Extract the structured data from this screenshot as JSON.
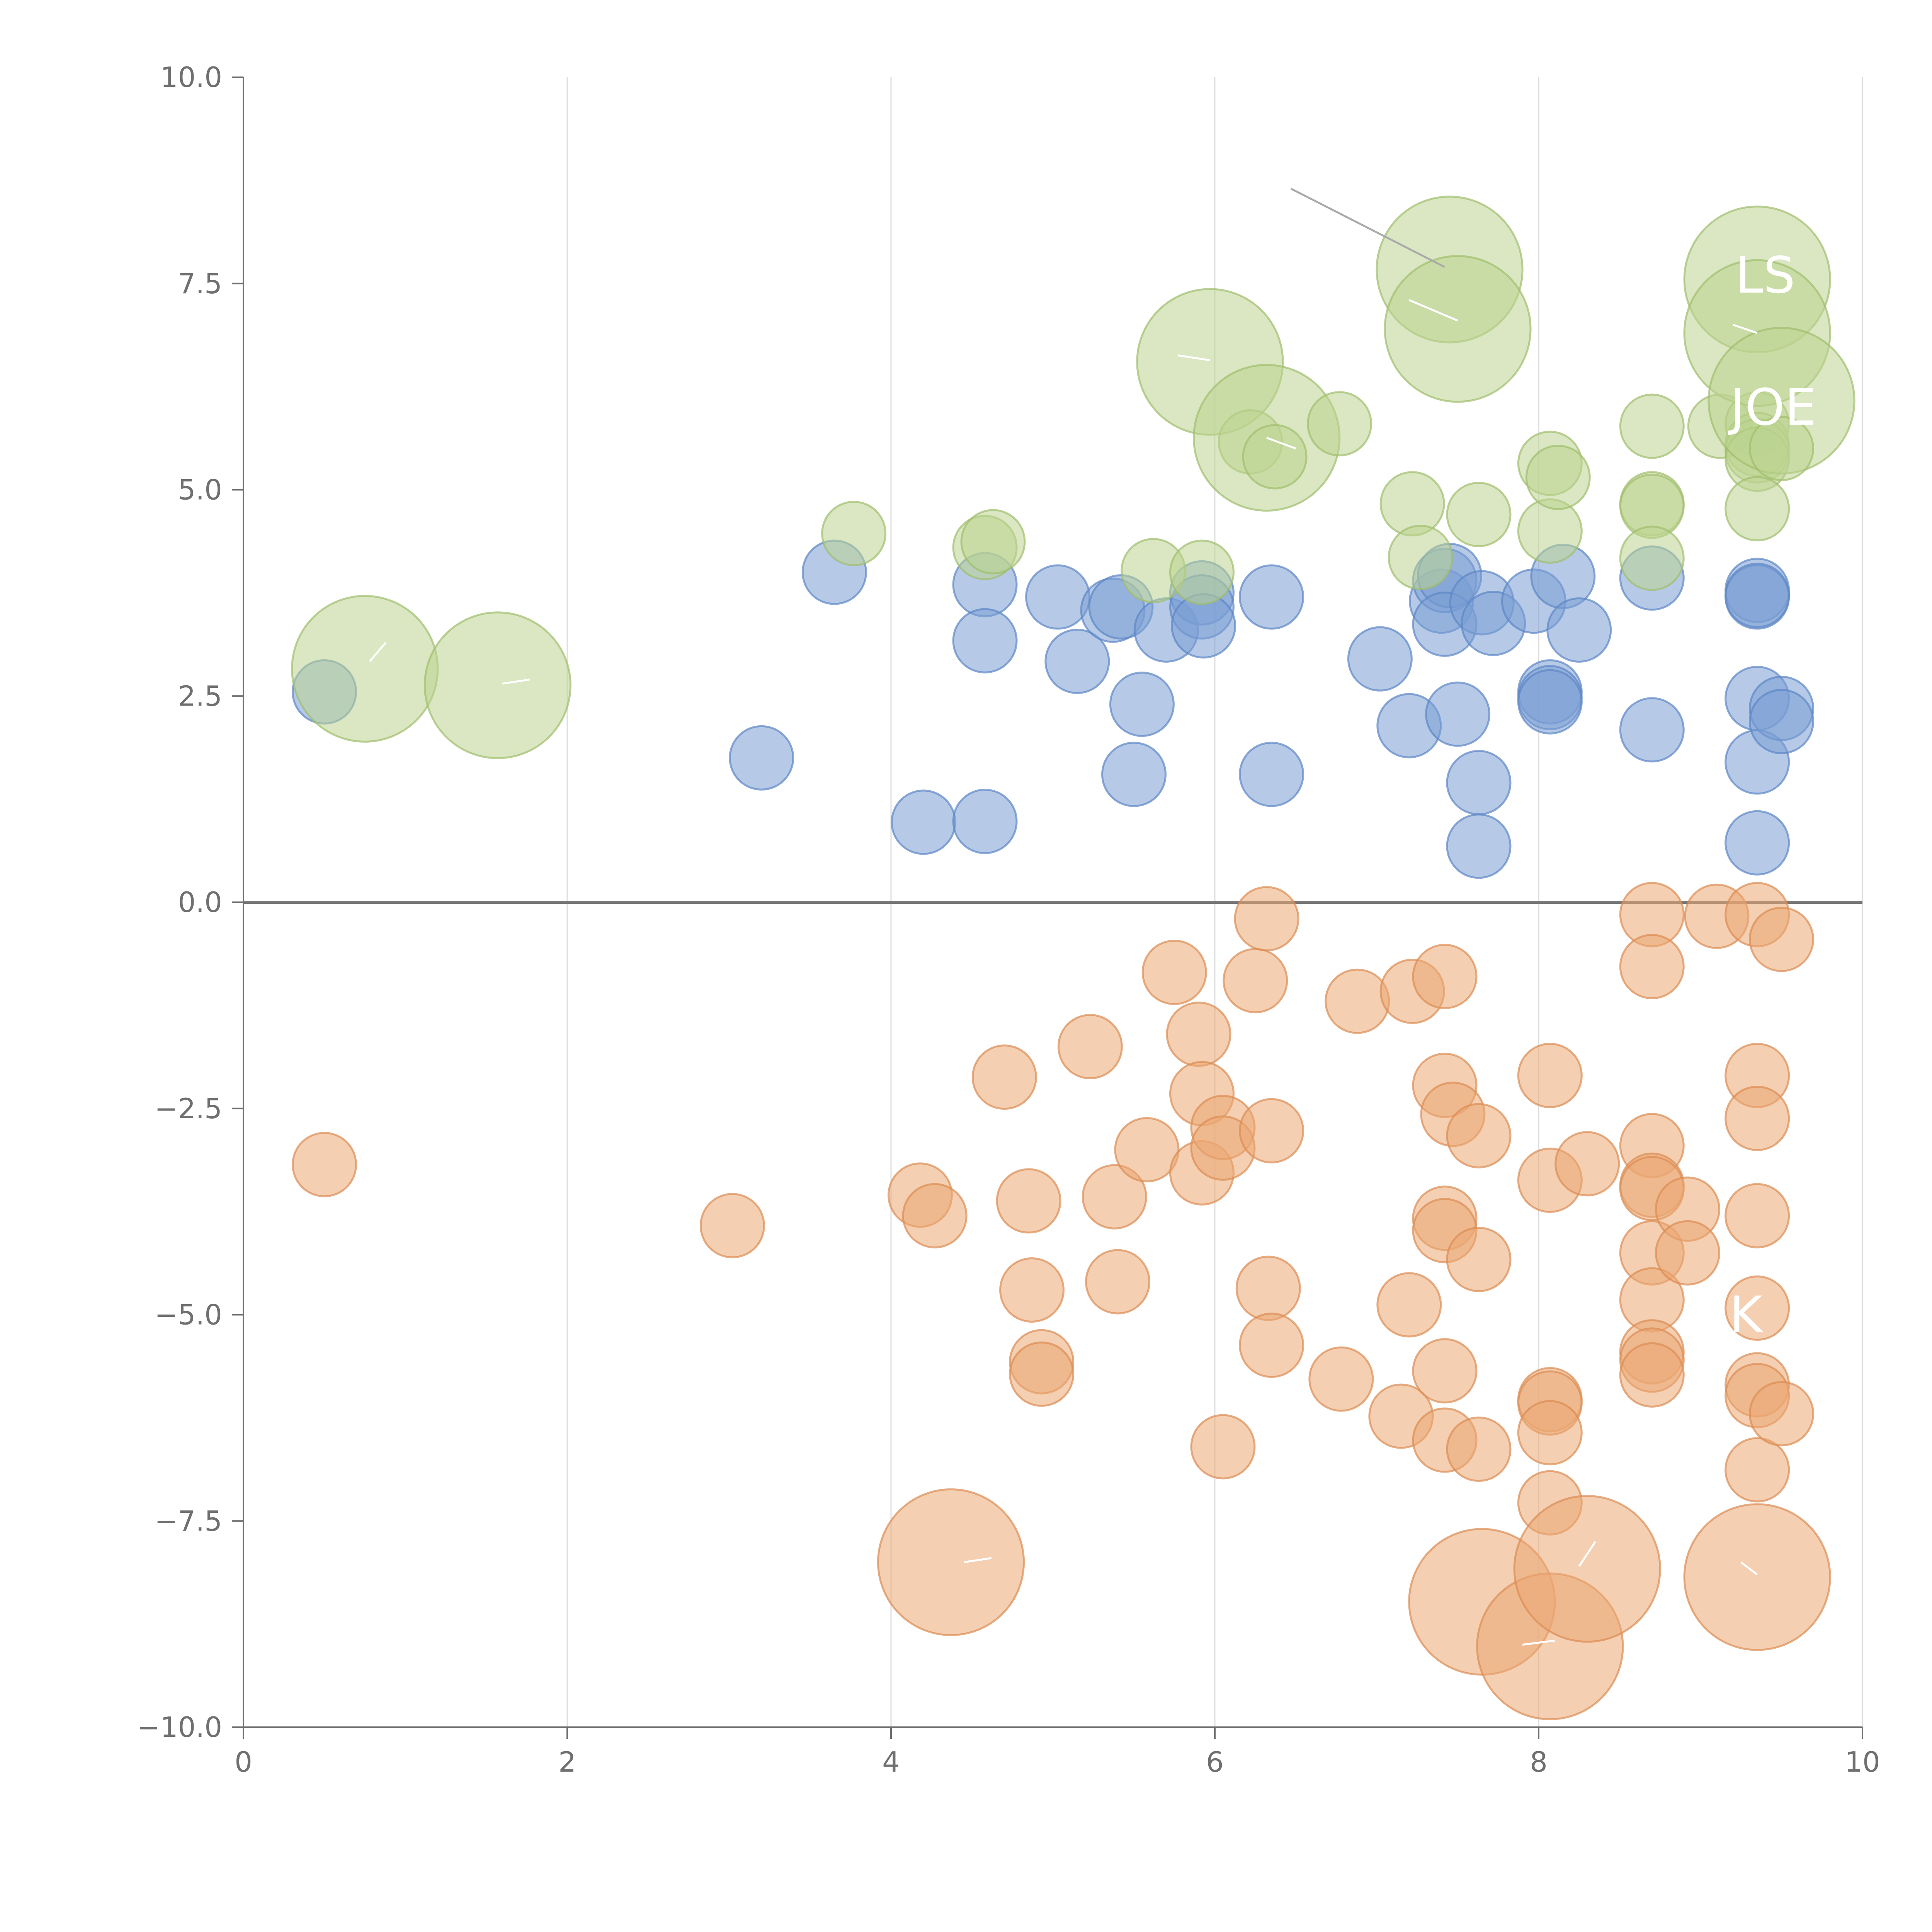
{
  "chart_data": {
    "type": "scatter",
    "title": "",
    "xlabel": "",
    "ylabel": "",
    "xlim": [
      0,
      10
    ],
    "ylim": [
      -10,
      10
    ],
    "x_ticks": [
      0,
      2,
      4,
      6,
      8,
      10
    ],
    "y_ticks": [
      -10,
      -7.5,
      -5,
      -2.5,
      0,
      2.5,
      5,
      7.5,
      10
    ],
    "x_tick_labels": [
      "0",
      "2",
      "4",
      "6",
      "8",
      "10"
    ],
    "y_tick_labels": [
      "−10.0",
      "−7.5",
      "−5.0",
      "−2.5",
      "0.0",
      "2.5",
      "5.0",
      "7.5",
      "10.0"
    ],
    "grid": "vertical",
    "legend": "none",
    "colors": {
      "blue": "#7a9fd4",
      "blue_stroke": "#5d86c6",
      "orange": "#eba872",
      "orange_stroke": "#db8c52",
      "green": "#bcd48f",
      "green_stroke": "#9fbd6c",
      "axis": "#6f6f6f",
      "grid": "#dddddd",
      "zero_line": "#777777"
    },
    "series": [
      {
        "name": "blue",
        "color": "#7a9fd4",
        "points": [
          [
            0.5,
            2.55,
            1
          ],
          [
            3.2,
            1.75,
            1
          ],
          [
            3.65,
            4.0,
            1
          ],
          [
            4.2,
            0.97,
            1
          ],
          [
            4.58,
            0.98,
            1
          ],
          [
            4.58,
            3.85,
            1
          ],
          [
            4.58,
            3.17,
            1
          ],
          [
            5.03,
            3.7,
            1
          ],
          [
            5.15,
            2.92,
            1
          ],
          [
            5.37,
            3.54,
            1
          ],
          [
            5.42,
            3.58,
            1
          ],
          [
            5.5,
            1.55,
            1
          ],
          [
            5.55,
            2.4,
            1
          ],
          [
            5.7,
            3.3,
            1
          ],
          [
            5.92,
            3.75,
            1
          ],
          [
            5.92,
            3.58,
            1
          ],
          [
            5.93,
            3.35,
            1
          ],
          [
            6.35,
            1.55,
            1
          ],
          [
            6.35,
            3.7,
            1
          ],
          [
            7.02,
            2.95,
            1
          ],
          [
            7.2,
            2.14,
            1
          ],
          [
            7.4,
            3.65,
            1
          ],
          [
            7.42,
            3.9,
            1
          ],
          [
            7.45,
            3.96,
            1
          ],
          [
            7.42,
            3.37,
            1
          ],
          [
            7.5,
            2.28,
            1
          ],
          [
            7.63,
            1.45,
            1
          ],
          [
            7.65,
            3.63,
            1
          ],
          [
            7.72,
            3.38,
            1
          ],
          [
            7.63,
            0.68,
            1
          ],
          [
            7.97,
            3.65,
            1
          ],
          [
            8.07,
            2.55,
            1
          ],
          [
            8.07,
            2.48,
            1
          ],
          [
            8.07,
            2.43,
            1
          ],
          [
            8.15,
            3.95,
            1
          ],
          [
            8.25,
            3.3,
            1
          ],
          [
            8.7,
            3.93,
            1
          ],
          [
            8.7,
            2.09,
            1
          ],
          [
            9.35,
            3.78,
            1
          ],
          [
            9.35,
            3.7,
            1
          ],
          [
            9.35,
            3.72,
            1
          ],
          [
            9.35,
            2.47,
            1
          ],
          [
            9.35,
            1.7,
            1
          ],
          [
            9.35,
            0.72,
            1
          ],
          [
            9.5,
            2.35,
            1
          ],
          [
            9.5,
            2.19,
            1
          ]
        ]
      },
      {
        "name": "orange",
        "color": "#eba872",
        "points": [
          [
            0.5,
            -3.18,
            1
          ],
          [
            3.02,
            -3.92,
            1
          ],
          [
            4.18,
            -3.55,
            1
          ],
          [
            4.27,
            -3.8,
            1
          ],
          [
            4.37,
            -8.0,
            2.3
          ],
          [
            4.7,
            -2.12,
            1
          ],
          [
            4.85,
            -3.62,
            1
          ],
          [
            4.87,
            -4.7,
            1
          ],
          [
            4.93,
            -5.57,
            1
          ],
          [
            4.93,
            -5.72,
            1
          ],
          [
            5.23,
            -1.75,
            1
          ],
          [
            5.38,
            -3.57,
            1
          ],
          [
            5.4,
            -4.6,
            1
          ],
          [
            5.58,
            -3.0,
            1
          ],
          [
            5.75,
            -0.85,
            1
          ],
          [
            5.9,
            -1.6,
            1
          ],
          [
            5.92,
            -2.32,
            1
          ],
          [
            5.92,
            -3.28,
            1
          ],
          [
            6.05,
            -2.73,
            1
          ],
          [
            6.05,
            -2.98,
            1
          ],
          [
            6.05,
            -6.6,
            1
          ],
          [
            6.25,
            -0.95,
            1
          ],
          [
            6.32,
            -0.2,
            1
          ],
          [
            6.33,
            -4.68,
            1
          ],
          [
            6.35,
            -2.77,
            1
          ],
          [
            6.35,
            -5.37,
            1
          ],
          [
            6.78,
            -5.78,
            1
          ],
          [
            6.88,
            -1.2,
            1
          ],
          [
            7.15,
            -6.23,
            1
          ],
          [
            7.2,
            -4.88,
            1
          ],
          [
            7.22,
            -1.08,
            1
          ],
          [
            7.42,
            -0.9,
            1
          ],
          [
            7.42,
            -2.22,
            1
          ],
          [
            7.42,
            -3.83,
            1
          ],
          [
            7.42,
            -3.98,
            1
          ],
          [
            7.42,
            -5.68,
            1
          ],
          [
            7.42,
            -6.52,
            1
          ],
          [
            7.47,
            -2.57,
            1
          ],
          [
            7.63,
            -2.83,
            1
          ],
          [
            7.63,
            -4.33,
            1
          ],
          [
            7.63,
            -6.63,
            1
          ],
          [
            7.65,
            -8.48,
            2.3
          ],
          [
            8.07,
            -2.1,
            1
          ],
          [
            8.07,
            -3.37,
            1
          ],
          [
            8.07,
            -6.03,
            1
          ],
          [
            8.07,
            -6.07,
            1
          ],
          [
            8.07,
            -6.43,
            1
          ],
          [
            8.07,
            -7.28,
            1
          ],
          [
            8.07,
            -9.02,
            2.3
          ],
          [
            8.3,
            -3.17,
            1
          ],
          [
            8.3,
            -8.08,
            2.3
          ],
          [
            8.7,
            -0.15,
            1
          ],
          [
            8.7,
            -0.78,
            1
          ],
          [
            8.7,
            -2.95,
            1
          ],
          [
            8.7,
            -3.43,
            1
          ],
          [
            8.7,
            -3.47,
            1
          ],
          [
            8.7,
            -4.25,
            1
          ],
          [
            8.7,
            -4.82,
            1
          ],
          [
            8.7,
            -5.45,
            1
          ],
          [
            8.7,
            -5.55,
            1
          ],
          [
            8.7,
            -5.73,
            1
          ],
          [
            8.92,
            -3.72,
            1
          ],
          [
            8.92,
            -4.25,
            1
          ],
          [
            9.1,
            -0.17,
            1
          ],
          [
            9.35,
            -0.15,
            1
          ],
          [
            9.35,
            -2.1,
            1
          ],
          [
            9.35,
            -2.62,
            1
          ],
          [
            9.35,
            -3.8,
            1
          ],
          [
            9.35,
            -4.92,
            1
          ],
          [
            9.35,
            -5.85,
            1
          ],
          [
            9.35,
            -5.98,
            1
          ],
          [
            9.35,
            -6.88,
            1
          ],
          [
            9.35,
            -8.18,
            2.3
          ],
          [
            9.5,
            -0.45,
            1
          ],
          [
            9.5,
            -6.2,
            1
          ]
        ]
      },
      {
        "name": "green",
        "color": "#bcd48f",
        "points": [
          [
            0.75,
            2.83,
            2.3
          ],
          [
            1.57,
            2.63,
            2.3
          ],
          [
            3.77,
            4.47,
            1
          ],
          [
            4.58,
            4.3,
            1
          ],
          [
            4.63,
            4.37,
            1
          ],
          [
            5.62,
            4.02,
            1
          ],
          [
            5.92,
            4.0,
            1
          ],
          [
            5.97,
            6.55,
            2.3
          ],
          [
            6.22,
            5.58,
            1
          ],
          [
            6.32,
            5.63,
            2.3
          ],
          [
            6.37,
            5.4,
            1
          ],
          [
            6.77,
            5.8,
            1
          ],
          [
            7.22,
            4.83,
            1
          ],
          [
            7.27,
            4.18,
            1
          ],
          [
            7.45,
            7.67,
            2.3
          ],
          [
            7.5,
            6.95,
            2.3
          ],
          [
            7.63,
            4.7,
            1
          ],
          [
            8.07,
            5.32,
            1
          ],
          [
            8.07,
            4.5,
            1
          ],
          [
            8.12,
            5.15,
            1
          ],
          [
            8.7,
            5.77,
            1
          ],
          [
            8.7,
            4.83,
            1
          ],
          [
            8.7,
            4.8,
            1
          ],
          [
            8.7,
            4.17,
            1
          ],
          [
            9.12,
            5.77,
            1
          ],
          [
            9.35,
            5.8,
            1
          ],
          [
            9.35,
            5.55,
            1
          ],
          [
            9.35,
            5.47,
            1
          ],
          [
            9.35,
            5.37,
            1
          ],
          [
            9.35,
            4.77,
            1
          ],
          [
            9.35,
            7.55,
            2.3
          ],
          [
            9.35,
            6.9,
            2.3
          ],
          [
            9.5,
            6.08,
            2.3
          ],
          [
            9.5,
            5.5,
            1
          ]
        ]
      }
    ],
    "leader_lines": [
      {
        "from": [
          6.47,
          8.65
        ],
        "to": [
          7.42,
          7.7
        ],
        "color": "#aaaaaa"
      },
      {
        "from": [
          7.2,
          7.3
        ],
        "to": [
          7.5,
          7.05
        ],
        "color": "#ffffff"
      },
      {
        "from": [
          5.77,
          6.63
        ],
        "to": [
          5.97,
          6.57
        ],
        "color": "#ffffff"
      },
      {
        "from": [
          6.5,
          5.5
        ],
        "to": [
          6.32,
          5.63
        ],
        "color": "#ffffff"
      },
      {
        "from": [
          9.2,
          7.0
        ],
        "to": [
          9.35,
          6.9
        ],
        "color": "#ffffff"
      },
      {
        "from": [
          0.78,
          2.92
        ],
        "to": [
          0.88,
          3.15
        ],
        "color": "#ffffff"
      },
      {
        "from": [
          1.6,
          2.65
        ],
        "to": [
          1.77,
          2.7
        ],
        "color": "#ffffff"
      },
      {
        "from": [
          4.45,
          -8.0
        ],
        "to": [
          4.62,
          -7.95
        ],
        "color": "#ffffff"
      },
      {
        "from": [
          8.25,
          -8.05
        ],
        "to": [
          8.35,
          -7.75
        ],
        "color": "#ffffff"
      },
      {
        "from": [
          9.25,
          -8.0
        ],
        "to": [
          9.35,
          -8.15
        ],
        "color": "#ffffff"
      },
      {
        "from": [
          7.9,
          -9.0
        ],
        "to": [
          8.1,
          -8.95
        ],
        "color": "#ffffff"
      }
    ],
    "annotations": [
      {
        "text": "LS",
        "x": 9.4,
        "y": 7.6
      },
      {
        "text": "JOE",
        "x": 9.45,
        "y": 6.0
      },
      {
        "text": "K",
        "x": 9.28,
        "y": -5.0
      }
    ]
  }
}
